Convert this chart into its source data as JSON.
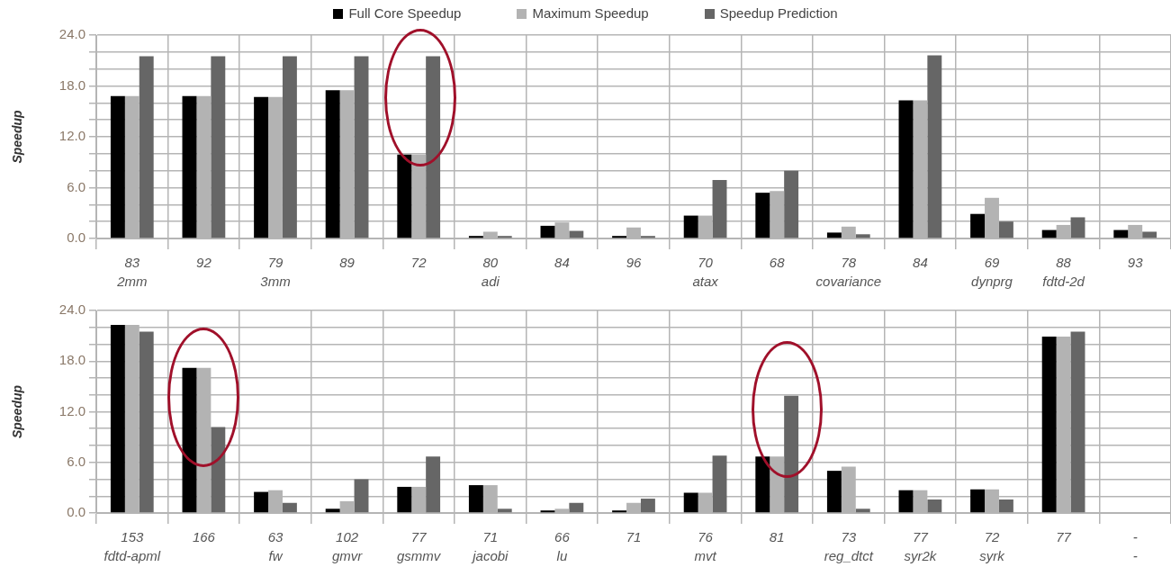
{
  "chart_data": [
    {
      "type": "bar",
      "ylabel": "Speedup",
      "legend": "top",
      "grid": true,
      "ylim": [
        0,
        24
      ],
      "yticks": [
        {
          "value": 0,
          "label": "0.0"
        },
        {
          "value": 2,
          "label": null
        },
        {
          "value": 4,
          "label": null
        },
        {
          "value": 6,
          "label": "6.0"
        },
        {
          "value": 8,
          "label": null
        },
        {
          "value": 10,
          "label": null
        },
        {
          "value": 12,
          "label": "12.0"
        },
        {
          "value": 14,
          "label": null
        },
        {
          "value": 16,
          "label": null
        },
        {
          "value": 18,
          "label": "18.0"
        },
        {
          "value": 20,
          "label": null
        },
        {
          "value": 22,
          "label": null
        },
        {
          "value": 24,
          "label": "24.0"
        }
      ],
      "categories": [
        "83\n2mm",
        "92",
        "79\n3mm",
        "89",
        "72",
        "80\nadi",
        "84",
        "96",
        "70\natax",
        "68",
        "78\ncovariance",
        "84",
        "69\ndynprg",
        "88\nfdtd-2d",
        "93"
      ],
      "series": [
        {
          "name": "Full Core Speedup",
          "color": "#000000",
          "values": [
            16.8,
            16.8,
            16.7,
            17.5,
            9.9,
            0.3,
            1.5,
            0.3,
            2.7,
            5.4,
            0.7,
            16.3,
            2.9,
            1.0,
            1.0
          ]
        },
        {
          "name": "Maximum Speedup",
          "color": "#b3b3b3",
          "values": [
            16.8,
            16.8,
            16.7,
            17.5,
            9.9,
            0.8,
            1.9,
            1.3,
            2.7,
            5.6,
            1.4,
            16.3,
            4.8,
            1.6,
            1.6
          ]
        },
        {
          "name": "Speedup Prediction",
          "color": "#666666",
          "values": [
            21.5,
            21.5,
            21.5,
            21.5,
            21.5,
            0.3,
            0.9,
            0.3,
            6.9,
            8.0,
            0.5,
            21.6,
            2.0,
            2.5,
            0.8
          ]
        }
      ]
    },
    {
      "type": "bar",
      "ylabel": "Speedup",
      "grid": true,
      "ylim": [
        0,
        24
      ],
      "yticks": [
        {
          "value": 0,
          "label": "0.0"
        },
        {
          "value": 2,
          "label": null
        },
        {
          "value": 4,
          "label": null
        },
        {
          "value": 6,
          "label": "6.0"
        },
        {
          "value": 8,
          "label": null
        },
        {
          "value": 10,
          "label": null
        },
        {
          "value": 12,
          "label": "12.0"
        },
        {
          "value": 14,
          "label": null
        },
        {
          "value": 16,
          "label": null
        },
        {
          "value": 18,
          "label": "18.0"
        },
        {
          "value": 20,
          "label": null
        },
        {
          "value": 22,
          "label": null
        },
        {
          "value": 24,
          "label": "24.0"
        }
      ],
      "categories": [
        "153\nfdtd-apml",
        "166",
        "63\nfw",
        "102\ngmvr",
        "77\ngsmmv",
        "71\njacobi",
        "66\nlu",
        "71",
        "76\nmvt",
        "81",
        "73\nreg_dtct",
        "77\nsyr2k",
        "72\nsyrk",
        "77",
        "-\n-"
      ],
      "series": [
        {
          "color": "#000000",
          "values": [
            22.3,
            17.2,
            2.5,
            0.5,
            3.1,
            3.3,
            0.3,
            0.3,
            2.4,
            6.7,
            5.0,
            2.7,
            2.8,
            20.9,
            null
          ]
        },
        {
          "color": "#b3b3b3",
          "values": [
            22.3,
            17.2,
            2.7,
            1.4,
            3.1,
            3.3,
            0.5,
            1.2,
            2.4,
            6.7,
            5.5,
            2.7,
            2.8,
            20.9,
            null
          ]
        },
        {
          "color": "#666666",
          "values": [
            21.5,
            10.2,
            1.2,
            4.0,
            6.7,
            0.5,
            1.2,
            1.7,
            6.8,
            13.9,
            0.5,
            1.6,
            1.6,
            21.5,
            null
          ]
        }
      ]
    }
  ]
}
